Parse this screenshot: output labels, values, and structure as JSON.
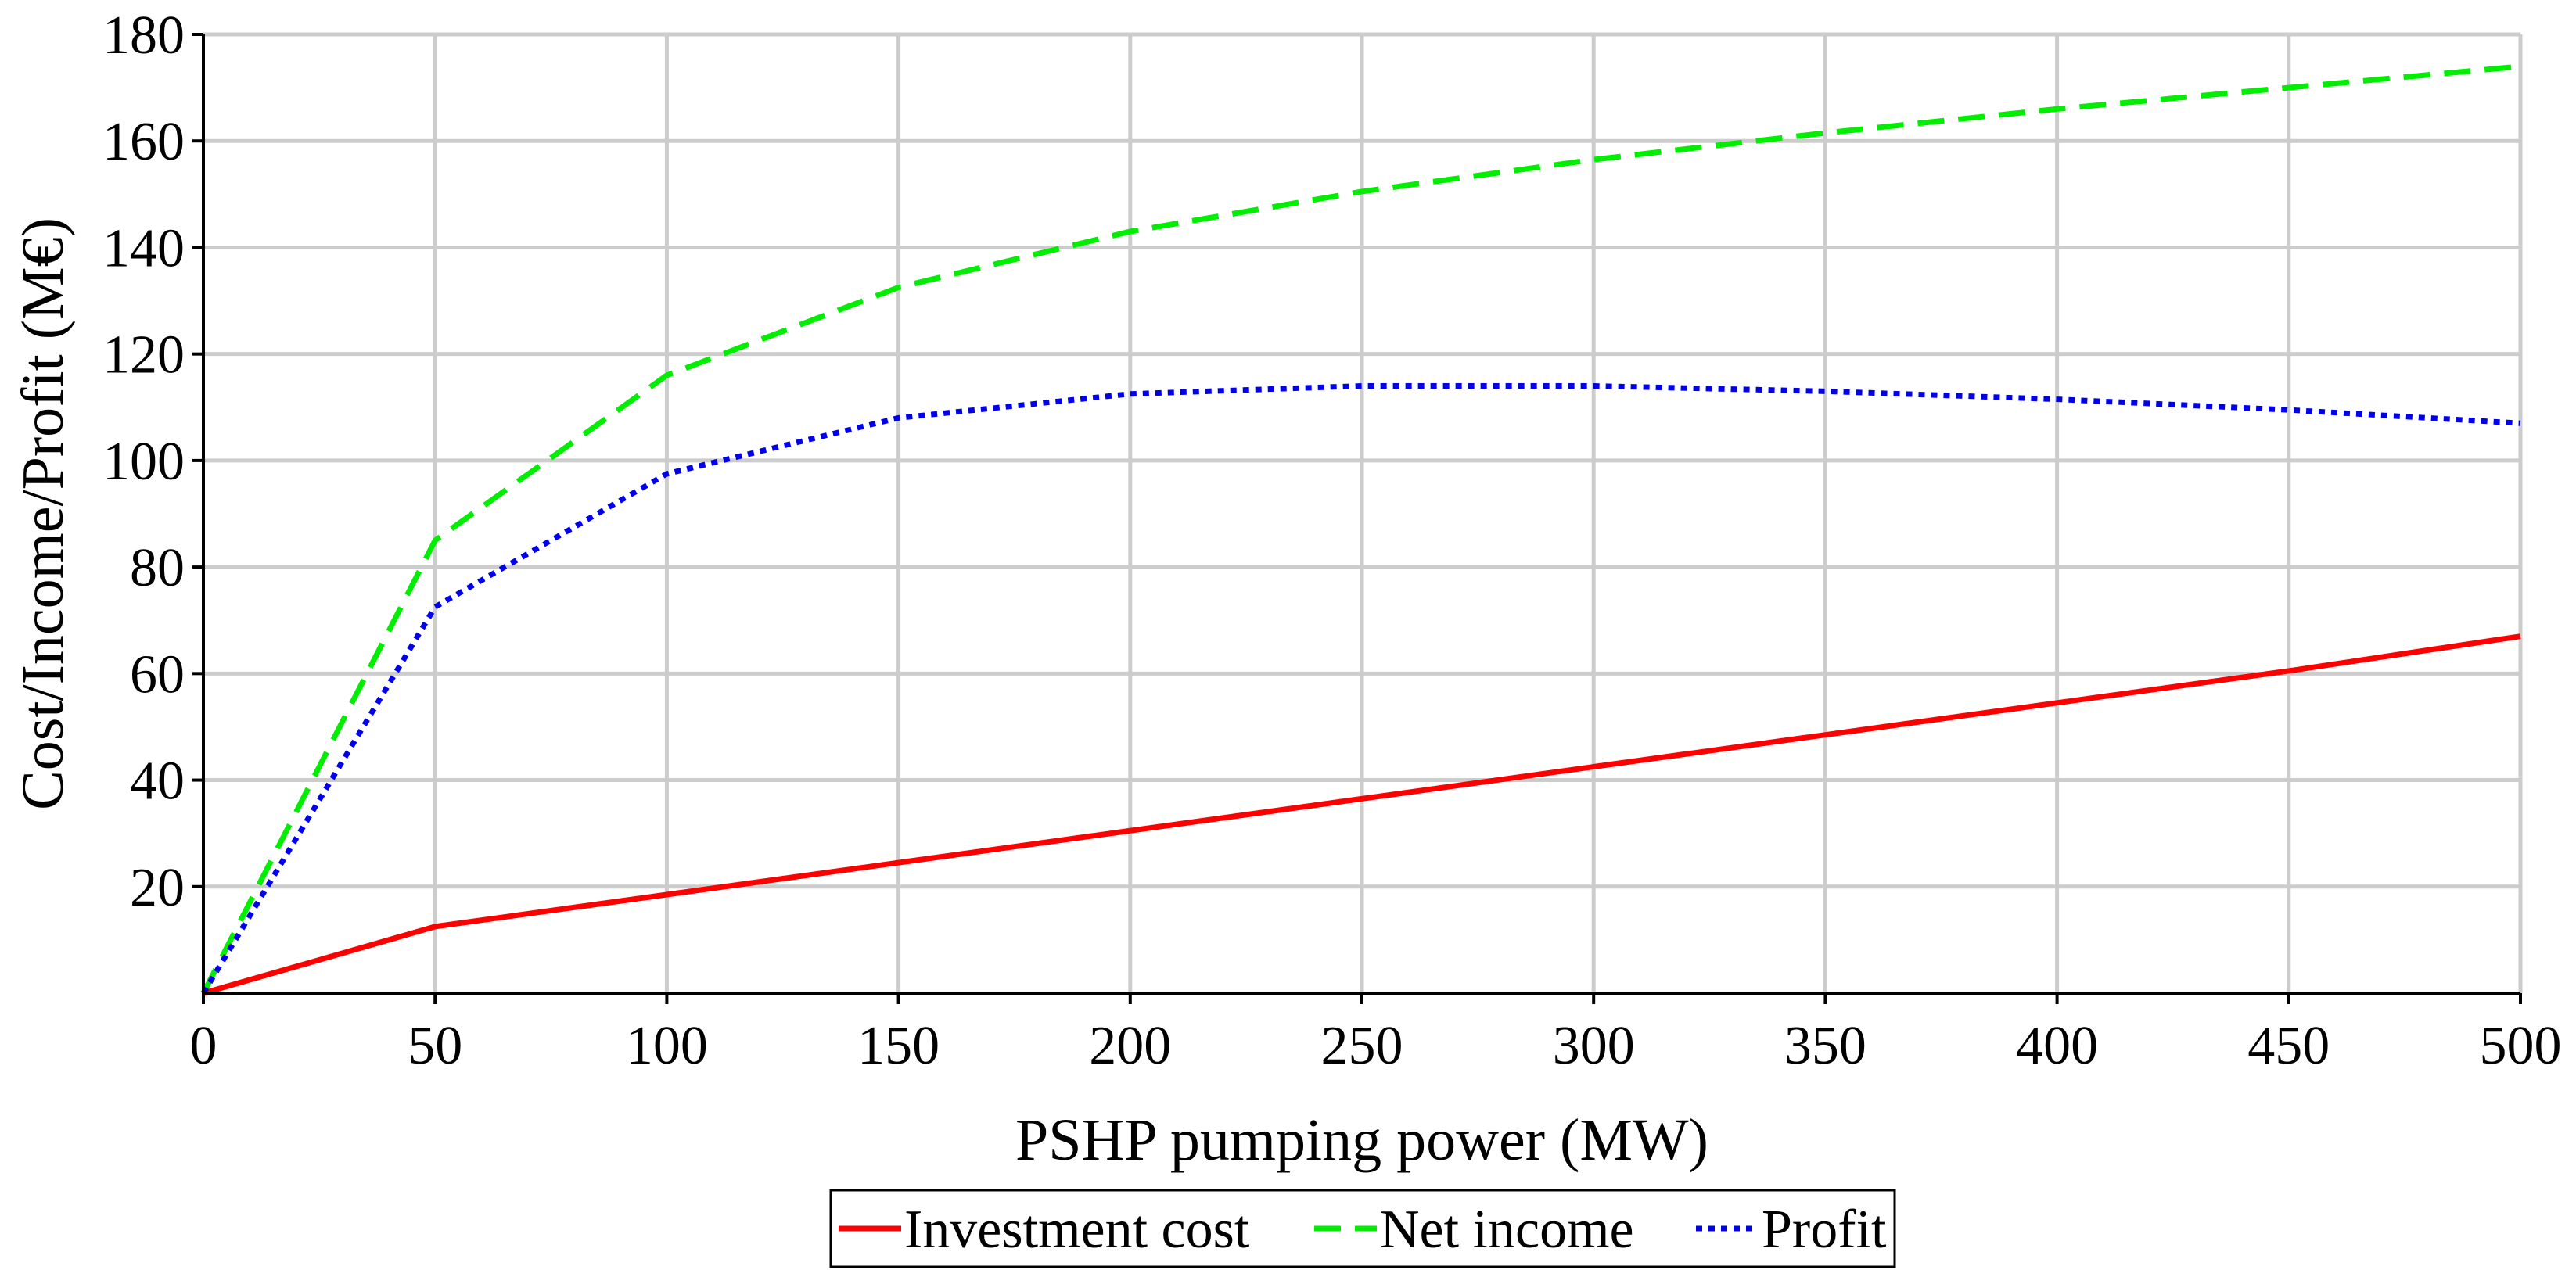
{
  "chart_data": {
    "type": "line",
    "title": "",
    "xlabel": "PSHP pumping power (MW)",
    "ylabel": "Cost/Income/Profit (M€)",
    "xlim": [
      0,
      500
    ],
    "ylim": [
      0,
      180
    ],
    "xticks": [
      0,
      50,
      100,
      150,
      200,
      250,
      300,
      350,
      400,
      450,
      500
    ],
    "yticks": [
      20,
      40,
      60,
      80,
      100,
      120,
      140,
      160,
      180
    ],
    "grid": true,
    "legend_position": "bottom-center",
    "series": [
      {
        "name": "Investment cost",
        "color": "#ff0000",
        "line_style": "solid",
        "x": [
          0,
          50,
          100,
          150,
          200,
          250,
          300,
          350,
          400,
          450,
          500
        ],
        "values": [
          0,
          12.5,
          18.5,
          24.5,
          30.5,
          36.5,
          42.5,
          48.5,
          54.5,
          60.5,
          67
        ]
      },
      {
        "name": "Net income",
        "color": "#00ee00",
        "line_style": "dashed",
        "x": [
          0,
          50,
          100,
          150,
          200,
          250,
          300,
          350,
          400,
          450,
          500
        ],
        "values": [
          0,
          85,
          116,
          132.5,
          143,
          150.5,
          156.5,
          161.5,
          166,
          170,
          174
        ]
      },
      {
        "name": "Profit",
        "color": "#0000ee",
        "line_style": "dotted",
        "x": [
          0,
          50,
          100,
          150,
          200,
          250,
          300,
          350,
          400,
          450,
          500
        ],
        "values": [
          0,
          72.5,
          97.5,
          108,
          112.5,
          114,
          114,
          113,
          111.5,
          109.5,
          107
        ]
      }
    ]
  }
}
